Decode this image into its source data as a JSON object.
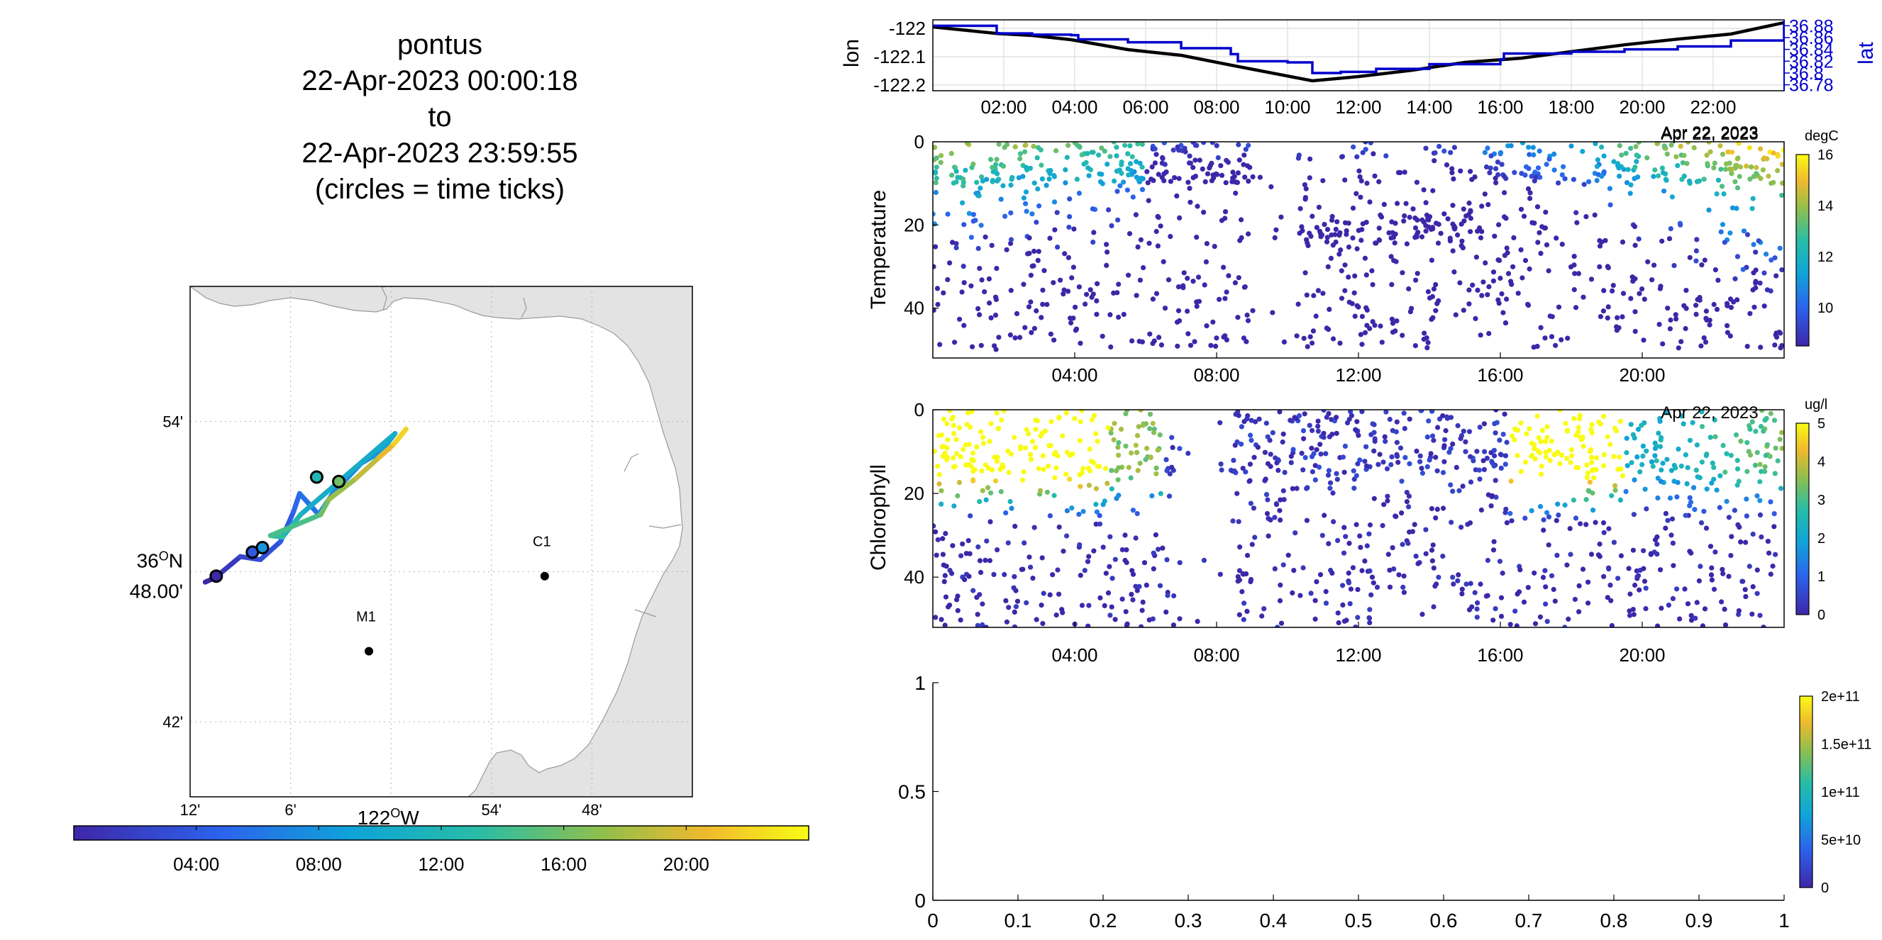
{
  "title": {
    "vehicle": "pontus",
    "start": "22-Apr-2023 00:00:18",
    "to": "to",
    "end": "22-Apr-2023 23:59:55",
    "note": "(circles = time ticks)"
  },
  "chart_data": [
    {
      "type": "map",
      "name": "track map",
      "lat_range": [
        36.65,
        36.99
      ],
      "lon_range": [
        -122.2,
        -121.7
      ],
      "lat_ticks": [
        {
          "value": 36.9,
          "label": "54'"
        },
        {
          "value": 36.8,
          "label": "48.00'",
          "degree_label": "36",
          "hemisphere": "N"
        },
        {
          "value": 36.7,
          "label": "42'"
        }
      ],
      "lon_ticks": [
        {
          "value": -122.2,
          "label": "12'"
        },
        {
          "value": -122.1,
          "label": "6'"
        },
        {
          "value": -122.0,
          "label": "122",
          "hemisphere": "W",
          "is_degree": true
        },
        {
          "value": -121.9,
          "label": "54'"
        },
        {
          "value": -121.8,
          "label": "48'"
        }
      ],
      "stations": [
        {
          "name": "C1",
          "lat": 36.797,
          "lon": -121.847
        },
        {
          "name": "M1",
          "lat": 36.747,
          "lon": -122.022
        }
      ],
      "track": [
        {
          "hour": 0.0,
          "lat": 36.793,
          "lon": -122.185
        },
        {
          "hour": 1.5,
          "lat": 36.796,
          "lon": -122.175
        },
        {
          "hour": 2.5,
          "lat": 36.81,
          "lon": -122.15
        },
        {
          "hour": 3.3,
          "lat": 36.808,
          "lon": -122.13
        },
        {
          "hour": 4.2,
          "lat": 36.82,
          "lon": -122.11
        },
        {
          "hour": 5.0,
          "lat": 36.84,
          "lon": -122.097
        },
        {
          "hour": 5.8,
          "lat": 36.852,
          "lon": -122.091
        },
        {
          "hour": 6.5,
          "lat": 36.838,
          "lon": -122.072
        },
        {
          "hour": 7.3,
          "lat": 36.852,
          "lon": -122.058
        },
        {
          "hour": 8.2,
          "lat": 36.872,
          "lon": -122.03
        },
        {
          "hour": 9.0,
          "lat": 36.88,
          "lon": -122.01
        },
        {
          "hour": 10.5,
          "lat": 36.892,
          "lon": -121.996
        },
        {
          "hour": 12.0,
          "lat": 36.838,
          "lon": -122.09
        },
        {
          "hour": 13.5,
          "lat": 36.823,
          "lon": -122.108
        },
        {
          "hour": 14.5,
          "lat": 36.824,
          "lon": -122.12
        },
        {
          "hour": 16.0,
          "lat": 36.838,
          "lon": -122.07
        },
        {
          "hour": 17.5,
          "lat": 36.848,
          "lon": -122.062
        },
        {
          "hour": 19.0,
          "lat": 36.862,
          "lon": -122.035
        },
        {
          "hour": 20.5,
          "lat": 36.876,
          "lon": -122.012
        },
        {
          "hour": 22.0,
          "lat": 36.885,
          "lon": -121.997
        },
        {
          "hour": 24.0,
          "lat": 36.895,
          "lon": -121.985
        }
      ],
      "time_tick_circles": [
        {
          "lat": 36.797,
          "lon": -122.174,
          "hour": 0.2
        },
        {
          "lat": 36.813,
          "lon": -122.138,
          "hour": 4.0
        },
        {
          "lat": 36.816,
          "lon": -122.128,
          "hour": 8.0
        },
        {
          "lat": 36.863,
          "lon": -122.074,
          "hour": 12.0
        },
        {
          "lat": 36.86,
          "lon": -122.052,
          "hour": 16.0
        }
      ],
      "colorbar": {
        "ticks": [
          "04:00",
          "08:00",
          "12:00",
          "16:00",
          "20:00"
        ],
        "range_hours": [
          0,
          24
        ]
      }
    },
    {
      "type": "line",
      "name": "lon/lat",
      "x_range_hours": [
        0,
        24
      ],
      "xticks": [
        "02:00",
        "04:00",
        "06:00",
        "08:00",
        "10:00",
        "12:00",
        "14:00",
        "16:00",
        "18:00",
        "20:00",
        "22:00"
      ],
      "date_label": "Apr 22, 2023",
      "ylabel_left": "lon",
      "ylabel_right": "lat",
      "ylim_left": [
        -122.22,
        -121.97
      ],
      "yticks_left": [
        "-122",
        "-122.1",
        "-122.2"
      ],
      "ylim_right": [
        36.77,
        36.89
      ],
      "yticks_right": [
        "36.88",
        "36.86",
        "36.84",
        "36.82",
        "36.8",
        "36.78"
      ],
      "series": [
        {
          "name": "lon",
          "color": "#000000",
          "x": [
            0,
            1.8,
            2.8,
            3.9,
            5.5,
            7.0,
            8.5,
            10.7,
            12.0,
            13.5,
            15.0,
            16.6,
            18.0,
            19.5,
            21.0,
            22.5,
            24.0
          ],
          "y": [
            -121.995,
            -122.018,
            -122.025,
            -122.04,
            -122.075,
            -122.095,
            -122.132,
            -122.185,
            -122.17,
            -122.148,
            -122.12,
            -122.105,
            -122.082,
            -122.058,
            -122.038,
            -122.02,
            -121.98
          ]
        },
        {
          "name": "lat",
          "color": "#0000cc",
          "x": [
            0,
            1.8,
            2.8,
            3.9,
            4.1,
            5.5,
            7.0,
            8.4,
            8.6,
            10.0,
            10.7,
            11.5,
            12.5,
            14.0,
            16.0,
            16.1,
            18.0,
            19.5,
            21.0,
            22.5,
            24.0
          ],
          "y": [
            36.88,
            36.867,
            36.865,
            36.864,
            36.857,
            36.852,
            36.842,
            36.832,
            36.82,
            36.818,
            36.8,
            36.802,
            36.807,
            36.815,
            36.823,
            36.833,
            36.836,
            36.84,
            36.845,
            36.855,
            36.884
          ]
        }
      ]
    },
    {
      "type": "scatter",
      "name": "Temperature",
      "ylabel": "Temperature",
      "ylim": [
        52,
        0
      ],
      "yticks": [
        "0",
        "20",
        "40"
      ],
      "xticks": [
        "04:00",
        "08:00",
        "12:00",
        "16:00",
        "20:00"
      ],
      "date_label": "Apr 22, 2023",
      "colorbar": {
        "unit": "degC",
        "range": [
          8.5,
          16
        ],
        "ticks": [
          "16",
          "14",
          "12",
          "10"
        ]
      },
      "approx_points": 1200
    },
    {
      "type": "scatter",
      "name": "Chlorophyll",
      "ylabel": "Chlorophyll",
      "ylim": [
        52,
        0
      ],
      "yticks": [
        "0",
        "20",
        "40"
      ],
      "xticks": [
        "04:00",
        "08:00",
        "12:00",
        "16:00",
        "20:00"
      ],
      "date_label": "Apr 22, 2023",
      "colorbar": {
        "unit": "ug/l",
        "range": [
          0,
          5
        ],
        "ticks": [
          "5",
          "4",
          "3",
          "2",
          "1",
          "0"
        ]
      },
      "approx_points": 1300
    },
    {
      "type": "scatter",
      "name": "empty panel",
      "xlim": [
        0,
        1
      ],
      "ylim": [
        0,
        1
      ],
      "xticks": [
        "0",
        "0.1",
        "0.2",
        "0.3",
        "0.4",
        "0.5",
        "0.6",
        "0.7",
        "0.8",
        "0.9",
        "1"
      ],
      "yticks": [
        "0",
        "0.5",
        "1"
      ],
      "colorbar": {
        "ticks": [
          "2e+11",
          "1.5e+11",
          "1e+11",
          "5e+10",
          "0"
        ]
      },
      "points": []
    }
  ]
}
